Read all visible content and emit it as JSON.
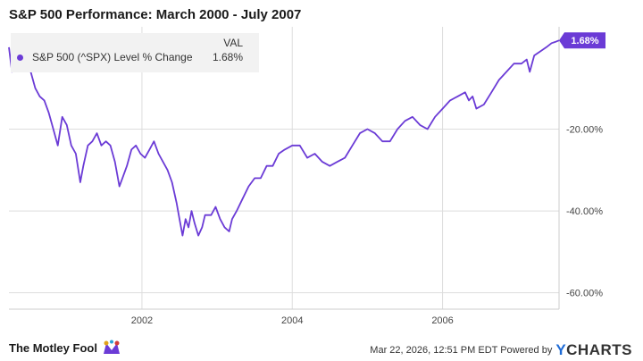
{
  "title": "S&P 500 Performance: March 2000 - July 2007",
  "legend": {
    "header": "VAL",
    "series_name": "S&P 500 (^SPX) Level % Change",
    "value": "1.68%"
  },
  "colors": {
    "series": "#6b3bd6",
    "grid": "#dddddd",
    "axis": "#cccccc"
  },
  "footer": {
    "brand": "The Motley Fool",
    "timestamp": "Mar 22, 2026, 12:51 PM EDT Powered by",
    "ycharts": "YCHARTS"
  },
  "chart_data": {
    "type": "line",
    "title": "S&P 500 Performance: March 2000 - July 2007",
    "xlabel": "",
    "ylabel": "",
    "x_ticks": [
      2002,
      2004,
      2006
    ],
    "y_ticks": [
      "-20.00%",
      "-40.00%",
      "-60.00%"
    ],
    "y_tick_values": [
      -20,
      -40,
      -60
    ],
    "ylim": [
      -64,
      5
    ],
    "xlim": [
      2000.23,
      2007.55
    ],
    "last_value_label": "1.68%",
    "grid": true,
    "legend_position": "top-left",
    "series": [
      {
        "name": "S&P 500 (^SPX) Level % Change",
        "x": [
          2000.23,
          2000.27,
          2000.33,
          2000.4,
          2000.46,
          2000.52,
          2000.58,
          2000.64,
          2000.7,
          2000.76,
          2000.82,
          2000.88,
          2000.94,
          2001.0,
          2001.06,
          2001.12,
          2001.18,
          2001.22,
          2001.28,
          2001.34,
          2001.4,
          2001.46,
          2001.52,
          2001.58,
          2001.64,
          2001.7,
          2001.74,
          2001.8,
          2001.86,
          2001.92,
          2001.98,
          2002.04,
          2002.1,
          2002.16,
          2002.22,
          2002.28,
          2002.34,
          2002.4,
          2002.46,
          2002.5,
          2002.54,
          2002.58,
          2002.62,
          2002.66,
          2002.7,
          2002.75,
          2002.8,
          2002.84,
          2002.88,
          2002.92,
          2002.98,
          2003.04,
          2003.1,
          2003.16,
          2003.2,
          2003.26,
          2003.34,
          2003.42,
          2003.5,
          2003.58,
          2003.66,
          2003.74,
          2003.82,
          2003.9,
          2004.0,
          2004.1,
          2004.2,
          2004.3,
          2004.4,
          2004.5,
          2004.6,
          2004.7,
          2004.8,
          2004.9,
          2005.0,
          2005.1,
          2005.2,
          2005.3,
          2005.4,
          2005.5,
          2005.6,
          2005.7,
          2005.8,
          2005.9,
          2006.0,
          2006.1,
          2006.2,
          2006.3,
          2006.35,
          2006.4,
          2006.45,
          2006.55,
          2006.65,
          2006.75,
          2006.85,
          2006.95,
          2007.05,
          2007.12,
          2007.16,
          2007.22,
          2007.3,
          2007.38,
          2007.45,
          2007.5,
          2007.55
        ],
        "values": [
          0.0,
          -6,
          -3,
          -5,
          -2,
          -6,
          -10,
          -12,
          -13,
          -16,
          -20,
          -24,
          -17,
          -19,
          -24,
          -26,
          -33,
          -29,
          -24,
          -23,
          -21,
          -24,
          -23,
          -24,
          -28,
          -34,
          -32,
          -29,
          -25,
          -24,
          -26,
          -27,
          -25,
          -23,
          -26,
          -28,
          -30,
          -33,
          -38,
          -42,
          -46,
          -42,
          -44,
          -40,
          -43,
          -46,
          -44,
          -41,
          -41,
          -41,
          -39,
          -42,
          -44,
          -45,
          -42,
          -40,
          -37,
          -34,
          -32,
          -32,
          -29,
          -29,
          -26,
          -25,
          -24,
          -24,
          -27,
          -26,
          -28,
          -29,
          -28,
          -27,
          -24,
          -21,
          -20,
          -21,
          -23,
          -23,
          -20,
          -18,
          -17,
          -19,
          -20,
          -17,
          -15,
          -13,
          -12,
          -11,
          -13,
          -12,
          -15,
          -14,
          -11,
          -8,
          -6,
          -4,
          -4,
          -3,
          -6,
          -2,
          -1,
          0,
          1,
          1.3,
          1.68
        ]
      }
    ]
  }
}
